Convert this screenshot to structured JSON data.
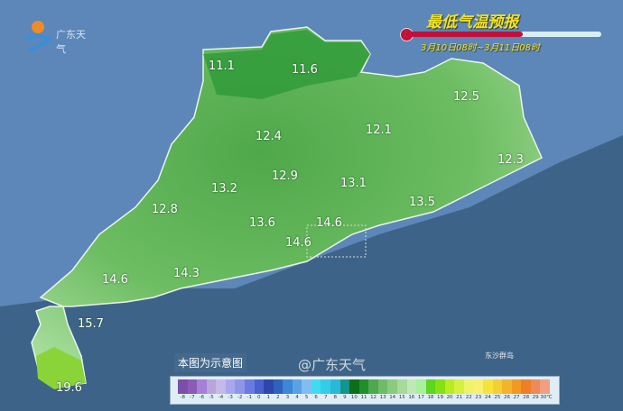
{
  "header": {
    "title": "最低气温预报",
    "period": "3月10日08时~3月11日08时",
    "logo_text": "广东天气",
    "progress": 0.6
  },
  "note": "本图为示意图",
  "island_label": "东沙群岛",
  "watermark": "@广东天气",
  "colors": {
    "sea": "#3d6488",
    "land_dark": "#2e9a3a",
    "land_light": "#a6dc9a",
    "title": "#f2e31c"
  },
  "stations": [
    {
      "value": "11.1"
    },
    {
      "value": "11.6"
    },
    {
      "value": "12.5"
    },
    {
      "value": "12.4"
    },
    {
      "value": "12.1"
    },
    {
      "value": "12.9"
    },
    {
      "value": "13.1"
    },
    {
      "value": "12.3"
    },
    {
      "value": "13.2"
    },
    {
      "value": "12.8"
    },
    {
      "value": "13.6"
    },
    {
      "value": "14.6"
    },
    {
      "value": "14.6"
    },
    {
      "value": "13.5"
    },
    {
      "value": "14.6"
    },
    {
      "value": "14.3"
    },
    {
      "value": "15.7"
    },
    {
      "value": "19.6"
    }
  ],
  "legend": {
    "unit": "℃",
    "ticks": [
      "-8",
      "-7",
      "-6",
      "-5",
      "-4",
      "-3",
      "-2",
      "-1",
      "0",
      "1",
      "2",
      "3",
      "4",
      "5",
      "6",
      "7",
      "8",
      "9",
      "10",
      "11",
      "12",
      "13",
      "14",
      "15",
      "16",
      "17",
      "18",
      "19",
      "20",
      "21",
      "22",
      "23",
      "24",
      "25",
      "26",
      "27",
      "28",
      "29",
      "30"
    ],
    "colors": [
      "#7b4fa8",
      "#8a5cb8",
      "#a77fd6",
      "#b9a4de",
      "#c7b8ea",
      "#a9a8ee",
      "#8f95ea",
      "#6a7ae2",
      "#4a60d0",
      "#2d47ac",
      "#2f62c0",
      "#3e86d6",
      "#5aa2e6",
      "#7fbdf2",
      "#3fdcf0",
      "#33cde8",
      "#2ab8d8",
      "#14958a",
      "#0e6e1c",
      "#1f8f2a",
      "#4ea84e",
      "#6ebc66",
      "#8acb7e",
      "#a6d99a",
      "#c0e8b4",
      "#a8f09a",
      "#5cd61e",
      "#86e014",
      "#b8ec1e",
      "#d6f040",
      "#eef46a",
      "#f8f070",
      "#f6e43c",
      "#f4cf34",
      "#f2b42a",
      "#f09a22",
      "#ee7e2a",
      "#ec8a5a",
      "#f0a080"
    ]
  }
}
